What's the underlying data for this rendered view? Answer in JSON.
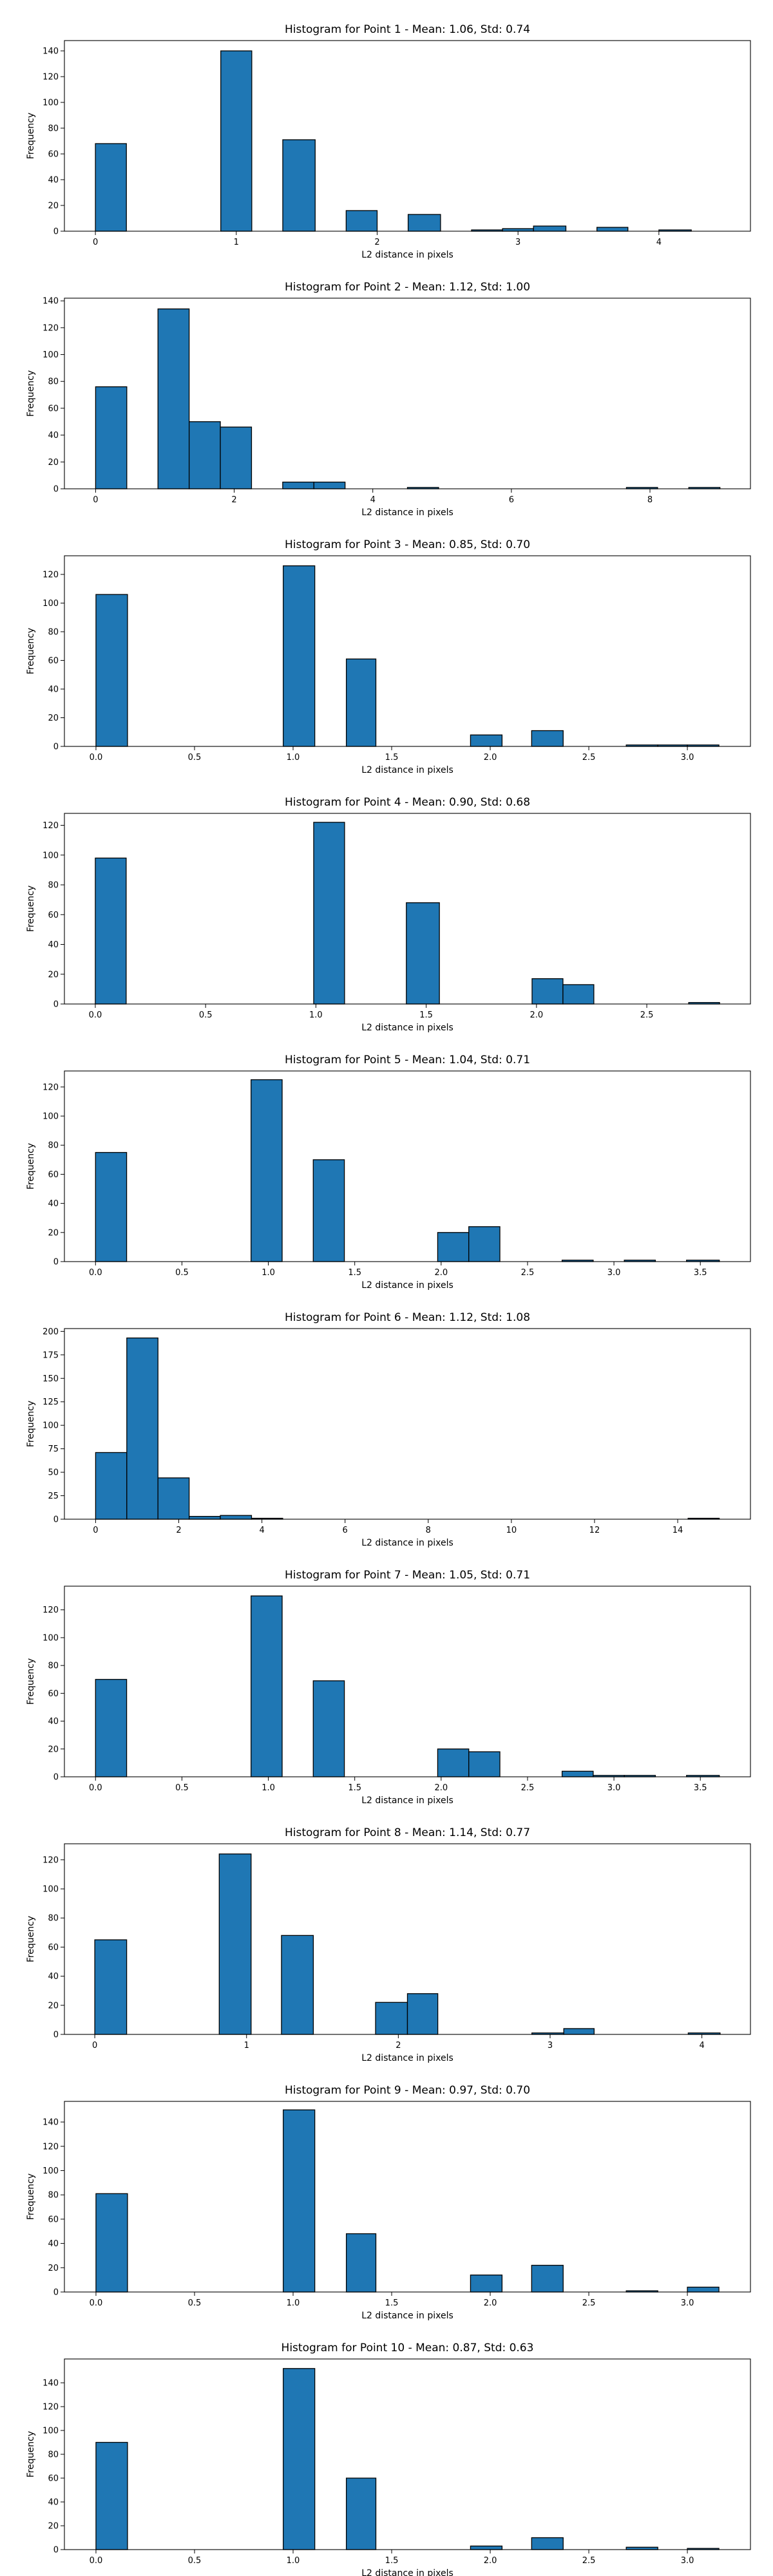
{
  "style": {
    "bar_fill": "#1f77b4",
    "bar_edge": "#000000",
    "background": "#ffffff"
  },
  "chart_data": [
    {
      "type": "bar",
      "title": "Histogram for Point 1 - Mean: 1.06, Std: 0.74",
      "xlabel": "L2 distance in pixels",
      "ylabel": "Frequency",
      "xlim": [
        -0.22,
        4.65
      ],
      "ylim": [
        0,
        148
      ],
      "xticks": [
        0,
        1,
        2,
        3,
        4
      ],
      "xtick_labels": [
        "0",
        "1",
        "2",
        "3",
        "4"
      ],
      "yticks": [
        0,
        20,
        40,
        60,
        80,
        100,
        120,
        140
      ],
      "grid": false,
      "bins": [
        {
          "x0": 0.0,
          "x1": 0.22,
          "count": 68
        },
        {
          "x0": 0.89,
          "x1": 1.11,
          "count": 140
        },
        {
          "x0": 1.33,
          "x1": 1.56,
          "count": 71
        },
        {
          "x0": 1.78,
          "x1": 2.0,
          "count": 16
        },
        {
          "x0": 2.22,
          "x1": 2.45,
          "count": 13
        },
        {
          "x0": 2.67,
          "x1": 2.89,
          "count": 1
        },
        {
          "x0": 2.89,
          "x1": 3.11,
          "count": 2
        },
        {
          "x0": 3.11,
          "x1": 3.34,
          "count": 4
        },
        {
          "x0": 3.56,
          "x1": 3.78,
          "count": 3
        },
        {
          "x0": 4.0,
          "x1": 4.23,
          "count": 1
        }
      ]
    },
    {
      "type": "bar",
      "title": "Histogram for Point 2 - Mean: 1.12, Std: 1.00",
      "xlabel": "L2 distance in pixels",
      "ylabel": "Frequency",
      "xlim": [
        -0.45,
        9.45
      ],
      "ylim": [
        0,
        142
      ],
      "xticks": [
        0,
        2,
        4,
        6,
        8
      ],
      "xtick_labels": [
        "0",
        "2",
        "4",
        "6",
        "8"
      ],
      "yticks": [
        0,
        20,
        40,
        60,
        80,
        100,
        120,
        140
      ],
      "grid": false,
      "bins": [
        {
          "x0": 0.0,
          "x1": 0.45,
          "count": 76
        },
        {
          "x0": 0.9,
          "x1": 1.35,
          "count": 134
        },
        {
          "x0": 1.35,
          "x1": 1.8,
          "count": 50
        },
        {
          "x0": 1.8,
          "x1": 2.25,
          "count": 46
        },
        {
          "x0": 2.7,
          "x1": 3.15,
          "count": 5
        },
        {
          "x0": 3.15,
          "x1": 3.6,
          "count": 5
        },
        {
          "x0": 4.5,
          "x1": 4.95,
          "count": 1
        },
        {
          "x0": 7.66,
          "x1": 8.11,
          "count": 1
        },
        {
          "x0": 8.56,
          "x1": 9.01,
          "count": 1
        }
      ]
    },
    {
      "type": "bar",
      "title": "Histogram for Point 3 - Mean: 0.85, Std: 0.70",
      "xlabel": "L2 distance in pixels",
      "ylabel": "Frequency",
      "xlim": [
        -0.16,
        3.32
      ],
      "ylim": [
        0,
        133
      ],
      "xticks": [
        0.0,
        0.5,
        1.0,
        1.5,
        2.0,
        2.5,
        3.0
      ],
      "xtick_labels": [
        "0.0",
        "0.5",
        "1.0",
        "1.5",
        "2.0",
        "2.5",
        "3.0"
      ],
      "yticks": [
        0,
        20,
        40,
        60,
        80,
        100,
        120
      ],
      "grid": false,
      "bins": [
        {
          "x0": 0.0,
          "x1": 0.16,
          "count": 106
        },
        {
          "x0": 0.95,
          "x1": 1.11,
          "count": 126
        },
        {
          "x0": 1.27,
          "x1": 1.42,
          "count": 61
        },
        {
          "x0": 1.9,
          "x1": 2.06,
          "count": 8
        },
        {
          "x0": 2.21,
          "x1": 2.37,
          "count": 11
        },
        {
          "x0": 2.69,
          "x1": 2.85,
          "count": 1
        },
        {
          "x0": 2.85,
          "x1": 3.0,
          "count": 1
        },
        {
          "x0": 3.0,
          "x1": 3.16,
          "count": 1
        }
      ]
    },
    {
      "type": "bar",
      "title": "Histogram for Point 4 - Mean: 0.90, Std: 0.68",
      "xlabel": "L2 distance in pixels",
      "ylabel": "Frequency",
      "xlim": [
        -0.14,
        2.97
      ],
      "ylim": [
        0,
        128
      ],
      "xticks": [
        0.0,
        0.5,
        1.0,
        1.5,
        2.0,
        2.5
      ],
      "xtick_labels": [
        "0.0",
        "0.5",
        "1.0",
        "1.5",
        "2.0",
        "2.5"
      ],
      "yticks": [
        0,
        20,
        40,
        60,
        80,
        100,
        120
      ],
      "grid": false,
      "bins": [
        {
          "x0": 0.0,
          "x1": 0.14,
          "count": 98
        },
        {
          "x0": 0.99,
          "x1": 1.13,
          "count": 122
        },
        {
          "x0": 1.41,
          "x1": 1.56,
          "count": 68
        },
        {
          "x0": 1.98,
          "x1": 2.12,
          "count": 17
        },
        {
          "x0": 2.12,
          "x1": 2.26,
          "count": 13
        },
        {
          "x0": 2.69,
          "x1": 2.83,
          "count": 1
        }
      ]
    },
    {
      "type": "bar",
      "title": "Histogram for Point 5 - Mean: 1.04, Std: 0.71",
      "xlabel": "L2 distance in pixels",
      "ylabel": "Frequency",
      "xlim": [
        -0.18,
        3.79
      ],
      "ylim": [
        0,
        131
      ],
      "xticks": [
        0.0,
        0.5,
        1.0,
        1.5,
        2.0,
        2.5,
        3.0,
        3.5
      ],
      "xtick_labels": [
        "0.0",
        "0.5",
        "1.0",
        "1.5",
        "2.0",
        "2.5",
        "3.0",
        "3.5"
      ],
      "yticks": [
        0,
        20,
        40,
        60,
        80,
        100,
        120
      ],
      "grid": false,
      "bins": [
        {
          "x0": 0.0,
          "x1": 0.18,
          "count": 75
        },
        {
          "x0": 0.9,
          "x1": 1.08,
          "count": 125
        },
        {
          "x0": 1.26,
          "x1": 1.44,
          "count": 70
        },
        {
          "x0": 1.98,
          "x1": 2.16,
          "count": 20
        },
        {
          "x0": 2.16,
          "x1": 2.34,
          "count": 24
        },
        {
          "x0": 2.7,
          "x1": 2.88,
          "count": 1
        },
        {
          "x0": 3.06,
          "x1": 3.24,
          "count": 1
        },
        {
          "x0": 3.42,
          "x1": 3.61,
          "count": 1
        }
      ]
    },
    {
      "type": "bar",
      "title": "Histogram for Point 6 - Mean: 1.12, Std: 1.08",
      "xlabel": "L2 distance in pixels",
      "ylabel": "Frequency",
      "xlim": [
        -0.75,
        15.75
      ],
      "ylim": [
        0,
        203
      ],
      "xticks": [
        0,
        2,
        4,
        6,
        8,
        10,
        12,
        14
      ],
      "xtick_labels": [
        "0",
        "2",
        "4",
        "6",
        "8",
        "10",
        "12",
        "14"
      ],
      "yticks": [
        0,
        25,
        50,
        75,
        100,
        125,
        150,
        175,
        200
      ],
      "grid": false,
      "bins": [
        {
          "x0": 0.0,
          "x1": 0.75,
          "count": 71
        },
        {
          "x0": 0.75,
          "x1": 1.5,
          "count": 193
        },
        {
          "x0": 1.5,
          "x1": 2.25,
          "count": 44
        },
        {
          "x0": 2.25,
          "x1": 3.0,
          "count": 3
        },
        {
          "x0": 3.0,
          "x1": 3.75,
          "count": 4
        },
        {
          "x0": 3.75,
          "x1": 4.5,
          "count": 1
        },
        {
          "x0": 14.25,
          "x1": 15.0,
          "count": 1
        }
      ]
    },
    {
      "type": "bar",
      "title": "Histogram for Point 7 - Mean: 1.05, Std: 0.71",
      "xlabel": "L2 distance in pixels",
      "ylabel": "Frequency",
      "xlim": [
        -0.18,
        3.79
      ],
      "ylim": [
        0,
        137
      ],
      "xticks": [
        0.0,
        0.5,
        1.0,
        1.5,
        2.0,
        2.5,
        3.0,
        3.5
      ],
      "xtick_labels": [
        "0.0",
        "0.5",
        "1.0",
        "1.5",
        "2.0",
        "2.5",
        "3.0",
        "3.5"
      ],
      "yticks": [
        0,
        20,
        40,
        60,
        80,
        100,
        120
      ],
      "grid": false,
      "bins": [
        {
          "x0": 0.0,
          "x1": 0.18,
          "count": 70
        },
        {
          "x0": 0.9,
          "x1": 1.08,
          "count": 130
        },
        {
          "x0": 1.26,
          "x1": 1.44,
          "count": 69
        },
        {
          "x0": 1.98,
          "x1": 2.16,
          "count": 20
        },
        {
          "x0": 2.16,
          "x1": 2.34,
          "count": 18
        },
        {
          "x0": 2.7,
          "x1": 2.88,
          "count": 4
        },
        {
          "x0": 2.88,
          "x1": 3.06,
          "count": 1
        },
        {
          "x0": 3.06,
          "x1": 3.24,
          "count": 1
        },
        {
          "x0": 3.42,
          "x1": 3.61,
          "count": 1
        }
      ]
    },
    {
      "type": "bar",
      "title": "Histogram for Point 8 - Mean: 1.14, Std: 0.77",
      "xlabel": "L2 distance in pixels",
      "ylabel": "Frequency",
      "xlim": [
        -0.2,
        4.32
      ],
      "ylim": [
        0,
        131
      ],
      "xticks": [
        0,
        1,
        2,
        3,
        4
      ],
      "xtick_labels": [
        "0",
        "1",
        "2",
        "3",
        "4"
      ],
      "yticks": [
        0,
        20,
        40,
        60,
        80,
        100,
        120
      ],
      "grid": false,
      "bins": [
        {
          "x0": 0.0,
          "x1": 0.21,
          "count": 65
        },
        {
          "x0": 0.82,
          "x1": 1.03,
          "count": 124
        },
        {
          "x0": 1.23,
          "x1": 1.44,
          "count": 68
        },
        {
          "x0": 1.85,
          "x1": 2.06,
          "count": 22
        },
        {
          "x0": 2.06,
          "x1": 2.26,
          "count": 28
        },
        {
          "x0": 2.88,
          "x1": 3.09,
          "count": 1
        },
        {
          "x0": 3.09,
          "x1": 3.29,
          "count": 4
        },
        {
          "x0": 3.91,
          "x1": 4.12,
          "count": 1
        }
      ]
    },
    {
      "type": "bar",
      "title": "Histogram for Point 9 - Mean: 0.97, Std: 0.70",
      "xlabel": "L2 distance in pixels",
      "ylabel": "Frequency",
      "xlim": [
        -0.16,
        3.32
      ],
      "ylim": [
        0,
        157
      ],
      "xticks": [
        0.0,
        0.5,
        1.0,
        1.5,
        2.0,
        2.5,
        3.0
      ],
      "xtick_labels": [
        "0.0",
        "0.5",
        "1.0",
        "1.5",
        "2.0",
        "2.5",
        "3.0"
      ],
      "yticks": [
        0,
        20,
        40,
        60,
        80,
        100,
        120,
        140
      ],
      "grid": false,
      "bins": [
        {
          "x0": 0.0,
          "x1": 0.16,
          "count": 81
        },
        {
          "x0": 0.95,
          "x1": 1.11,
          "count": 150
        },
        {
          "x0": 1.27,
          "x1": 1.42,
          "count": 48
        },
        {
          "x0": 1.9,
          "x1": 2.06,
          "count": 14
        },
        {
          "x0": 2.21,
          "x1": 2.37,
          "count": 22
        },
        {
          "x0": 2.69,
          "x1": 2.85,
          "count": 1
        },
        {
          "x0": 3.0,
          "x1": 3.16,
          "count": 4
        }
      ]
    },
    {
      "type": "bar",
      "title": "Histogram for Point 10 - Mean: 0.87, Std: 0.63",
      "xlabel": "L2 distance in pixels",
      "ylabel": "Frequency",
      "xlim": [
        -0.16,
        3.32
      ],
      "ylim": [
        0,
        160
      ],
      "xticks": [
        0.0,
        0.5,
        1.0,
        1.5,
        2.0,
        2.5,
        3.0
      ],
      "xtick_labels": [
        "0.0",
        "0.5",
        "1.0",
        "1.5",
        "2.0",
        "2.5",
        "3.0"
      ],
      "yticks": [
        0,
        20,
        40,
        60,
        80,
        100,
        120,
        140
      ],
      "grid": false,
      "bins": [
        {
          "x0": 0.0,
          "x1": 0.16,
          "count": 90
        },
        {
          "x0": 0.95,
          "x1": 1.11,
          "count": 152
        },
        {
          "x0": 1.27,
          "x1": 1.42,
          "count": 60
        },
        {
          "x0": 1.9,
          "x1": 2.06,
          "count": 3
        },
        {
          "x0": 2.21,
          "x1": 2.37,
          "count": 10
        },
        {
          "x0": 2.69,
          "x1": 2.85,
          "count": 2
        },
        {
          "x0": 3.0,
          "x1": 3.16,
          "count": 1
        }
      ]
    }
  ]
}
